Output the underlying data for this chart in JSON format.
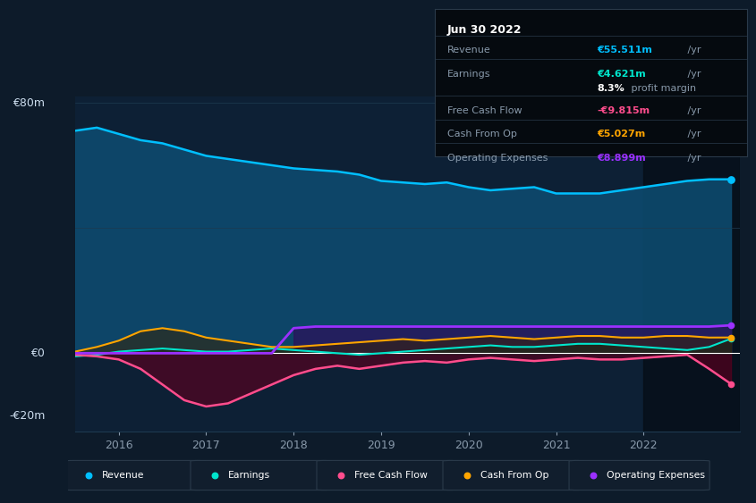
{
  "bg_color": "#0d1b2a",
  "plot_bg_color": "#0d2035",
  "grid_color": "#1e3a50",
  "zero_line_color": "#ffffff",
  "years": [
    2015.5,
    2015.75,
    2016.0,
    2016.25,
    2016.5,
    2016.75,
    2017.0,
    2017.25,
    2017.5,
    2017.75,
    2018.0,
    2018.25,
    2018.5,
    2018.75,
    2019.0,
    2019.25,
    2019.5,
    2019.75,
    2020.0,
    2020.25,
    2020.5,
    2020.75,
    2021.0,
    2021.25,
    2021.5,
    2021.75,
    2022.0,
    2022.25,
    2022.5,
    2022.75,
    2023.0
  ],
  "revenue": [
    71,
    72,
    70,
    68,
    67,
    65,
    63,
    62,
    61,
    60,
    59,
    58.5,
    58,
    57,
    55,
    54.5,
    54,
    54.5,
    53,
    52,
    52.5,
    53,
    51,
    51,
    51,
    52,
    53,
    54,
    55,
    55.5,
    55.511
  ],
  "earnings": [
    -1,
    -0.5,
    0.5,
    1,
    1.5,
    1,
    0.5,
    0.5,
    1,
    1.5,
    1,
    0.5,
    0,
    -0.5,
    0,
    0.5,
    1,
    1.5,
    2,
    2.5,
    2,
    2,
    2.5,
    3,
    3,
    2.5,
    2,
    1.5,
    1,
    2,
    4.621
  ],
  "free_cash_flow": [
    -0.5,
    -1,
    -2,
    -5,
    -10,
    -15,
    -17,
    -16,
    -13,
    -10,
    -7,
    -5,
    -4,
    -5,
    -4,
    -3,
    -2.5,
    -3,
    -2,
    -1.5,
    -2,
    -2.5,
    -2,
    -1.5,
    -2,
    -2,
    -1.5,
    -1,
    -0.5,
    -5,
    -9.815
  ],
  "cash_from_op": [
    0.5,
    2,
    4,
    7,
    8,
    7,
    5,
    4,
    3,
    2,
    2,
    2.5,
    3,
    3.5,
    4,
    4.5,
    4,
    4.5,
    5,
    5.5,
    5,
    4.5,
    5,
    5.5,
    5.5,
    5,
    5,
    5.5,
    5.5,
    5,
    5.027
  ],
  "operating_expenses": [
    0,
    0,
    0,
    0,
    0,
    0,
    0,
    0,
    0,
    0,
    8,
    8.5,
    8.5,
    8.5,
    8.5,
    8.5,
    8.5,
    8.5,
    8.5,
    8.5,
    8.5,
    8.5,
    8.5,
    8.5,
    8.5,
    8.5,
    8.5,
    8.5,
    8.5,
    8.5,
    8.899
  ],
  "revenue_color": "#00bfff",
  "earnings_color": "#00e5cc",
  "fcf_color": "#ff4d8d",
  "cashop_color": "#ffa500",
  "opex_color": "#9b30ff",
  "revenue_fill": "#0d4a6e",
  "ylabel_80": "€80m",
  "ylabel_0": "€0",
  "ylabel_neg20": "-€20m",
  "ylim_min": -25,
  "ylim_max": 82,
  "xlim_min": 2015.5,
  "xlim_max": 2023.1,
  "xticks": [
    2016,
    2017,
    2018,
    2019,
    2020,
    2021,
    2022
  ],
  "highlight_start": 2022.0,
  "info_title": "Jun 30 2022",
  "info_revenue_label": "Revenue",
  "info_revenue_val_colored": "€55.511m",
  "info_revenue_val_gray": " /yr",
  "info_earnings_label": "Earnings",
  "info_earnings_val_colored": "€4.621m",
  "info_earnings_val_gray": " /yr",
  "info_margin_bold": "8.3%",
  "info_margin_rest": " profit margin",
  "info_fcf_label": "Free Cash Flow",
  "info_fcf_val_colored": "-€9.815m",
  "info_fcf_val_gray": " /yr",
  "info_cashop_label": "Cash From Op",
  "info_cashop_val_colored": "€5.027m",
  "info_cashop_val_gray": " /yr",
  "info_opex_label": "Operating Expenses",
  "info_opex_val_colored": "€8.899m",
  "info_opex_val_gray": " /yr",
  "legend_items": [
    "Revenue",
    "Earnings",
    "Free Cash Flow",
    "Cash From Op",
    "Operating Expenses"
  ],
  "legend_colors": [
    "#00bfff",
    "#00e5cc",
    "#ff4d8d",
    "#ffa500",
    "#9b30ff"
  ]
}
